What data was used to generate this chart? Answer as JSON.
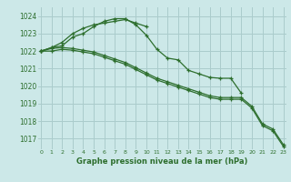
{
  "title": "Graphe pression niveau de la mer (hPa)",
  "bg_color": "#cce8e8",
  "grid_color": "#aacccc",
  "line_color": "#2d6e2d",
  "xlim": [
    -0.3,
    23.3
  ],
  "ylim": [
    1016.4,
    1024.5
  ],
  "yticks": [
    1017,
    1018,
    1019,
    1020,
    1021,
    1022,
    1023,
    1024
  ],
  "xticks": [
    0,
    1,
    2,
    3,
    4,
    5,
    6,
    7,
    8,
    9,
    10,
    11,
    12,
    13,
    14,
    15,
    16,
    17,
    18,
    19,
    20,
    21,
    22,
    23
  ],
  "series": [
    [
      1022.0,
      1022.2,
      1022.5,
      1023.0,
      1023.3,
      1023.5,
      1023.6,
      1023.7,
      1023.8,
      1023.6,
      1023.4,
      null,
      null,
      null,
      null,
      null,
      null,
      null,
      null,
      null,
      null,
      null,
      null,
      null
    ],
    [
      1022.0,
      1022.2,
      1022.3,
      1022.8,
      1023.0,
      1023.4,
      1023.7,
      1023.85,
      1023.85,
      1023.5,
      1022.9,
      1022.1,
      1021.6,
      1021.5,
      1020.9,
      1020.7,
      1020.5,
      1020.45,
      1020.45,
      1019.6,
      null,
      null,
      null,
      null
    ],
    [
      1022.0,
      1022.15,
      1022.2,
      1022.15,
      1022.05,
      1021.95,
      1021.75,
      1021.55,
      1021.35,
      1021.05,
      1020.75,
      1020.45,
      1020.25,
      1020.05,
      1019.85,
      1019.65,
      1019.45,
      1019.35,
      1019.35,
      1019.35,
      1018.85,
      1017.85,
      1017.55,
      1016.65
    ],
    [
      1022.0,
      1022.0,
      1022.1,
      1022.05,
      1021.95,
      1021.85,
      1021.65,
      1021.45,
      1021.25,
      1020.95,
      1020.65,
      1020.35,
      1020.15,
      1019.95,
      1019.75,
      1019.55,
      1019.35,
      1019.25,
      1019.25,
      1019.25,
      1018.75,
      1017.75,
      1017.45,
      1016.55
    ]
  ]
}
